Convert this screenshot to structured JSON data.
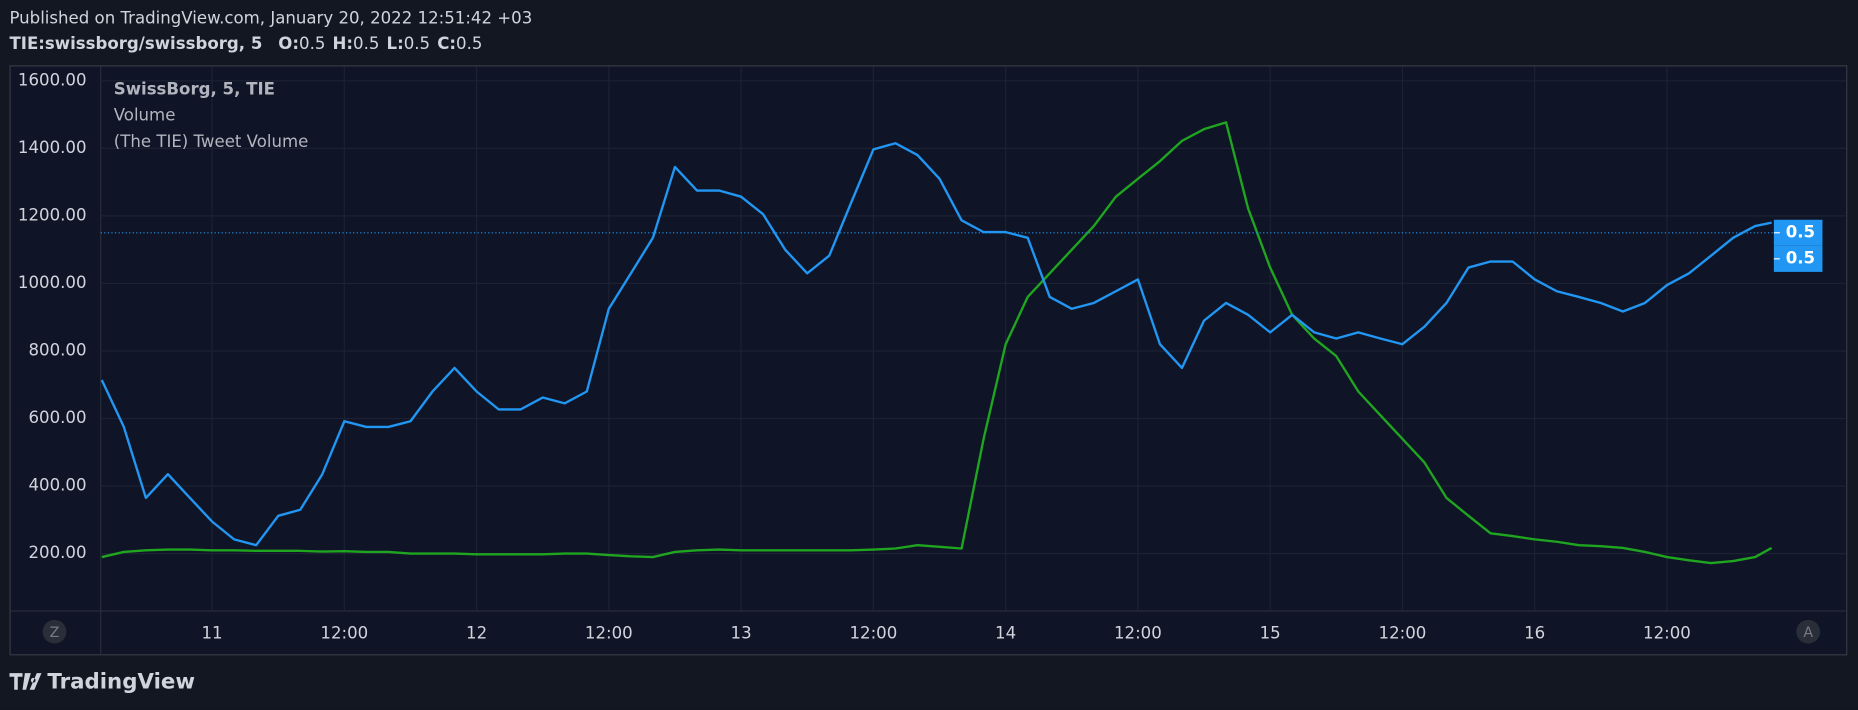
{
  "header": {
    "published": "Published on TradingView.com, January 20, 2022 12:51:42 +03",
    "symbol": "TIE:swissborg/swissborg, 5",
    "ohlc": [
      {
        "label": "O:",
        "value": 0.5
      },
      {
        "label": "H:",
        "value": 0.5
      },
      {
        "label": "L:",
        "value": 0.5
      },
      {
        "label": "C:",
        "value": 0.5
      }
    ]
  },
  "chart_data": {
    "type": "line",
    "legend_title": "SwissBorg, 5, TIE",
    "x": [
      -10,
      -8,
      -6,
      -4,
      -2,
      0,
      2,
      4,
      6,
      8,
      10,
      12,
      14,
      16,
      18,
      20,
      22,
      24,
      26,
      28,
      30,
      32,
      34,
      36,
      38,
      40,
      42,
      44,
      46,
      48,
      50,
      52,
      54,
      56,
      58,
      60,
      62,
      64,
      66,
      68,
      70,
      72,
      74,
      76,
      78,
      80,
      82,
      84,
      86,
      88,
      90,
      92,
      94,
      96,
      98,
      100,
      102,
      104,
      106,
      108,
      110,
      112,
      114,
      116,
      118,
      120,
      122,
      124,
      126,
      128,
      130,
      132,
      134,
      136,
      138,
      140,
      141.5
    ],
    "series": [
      {
        "name": "Volume",
        "color": "#2196f3",
        "values": [
          714,
          575,
          365,
          435,
          365,
          295,
          242,
          225,
          312,
          330,
          435,
          592,
          575,
          575,
          592,
          680,
          750,
          680,
          627,
          627,
          662,
          645,
          680,
          925,
          1030,
          1135,
          1345,
          1275,
          1275,
          1257,
          1205,
          1100,
          1030,
          1082,
          1240,
          1397,
          1415,
          1380,
          1310,
          1187,
          1152,
          1152,
          1135,
          960,
          925,
          942,
          977,
          1012,
          820,
          750,
          890,
          942,
          907,
          855,
          907,
          855,
          837,
          855,
          837,
          820,
          872,
          942,
          1047,
          1065,
          1065,
          1012,
          977,
          960,
          942,
          917,
          942,
          995,
          1030,
          1082,
          1135,
          1170,
          1180
        ]
      },
      {
        "name": "(The TIE) Tweet Volume",
        "color": "#1fa51f",
        "values": [
          190,
          205,
          210,
          212,
          212,
          210,
          210,
          208,
          208,
          208,
          206,
          207,
          205,
          205,
          200,
          200,
          200,
          198,
          198,
          198,
          198,
          200,
          200,
          196,
          192,
          190,
          205,
          210,
          212,
          210,
          210,
          210,
          210,
          210,
          210,
          212,
          215,
          225,
          220,
          215,
          540,
          820,
          960,
          1030,
          1100,
          1170,
          1257,
          1310,
          1362,
          1422,
          1457,
          1477,
          1222,
          1047,
          907,
          837,
          785,
          680,
          610,
          540,
          470,
          365,
          312,
          260,
          252,
          242,
          235,
          225,
          222,
          217,
          205,
          190,
          180,
          172,
          178,
          190,
          217
        ]
      }
    ],
    "xlim": [
      -10.1,
      141.7
    ],
    "xticks": [
      {
        "value": 0,
        "label": "11"
      },
      {
        "value": 12,
        "label": "12:00"
      },
      {
        "value": 24,
        "label": "12"
      },
      {
        "value": 36,
        "label": "12:00"
      },
      {
        "value": 48,
        "label": "13"
      },
      {
        "value": 60,
        "label": "12:00"
      },
      {
        "value": 72,
        "label": "14"
      },
      {
        "value": 84,
        "label": "12:00"
      },
      {
        "value": 96,
        "label": "15"
      },
      {
        "value": 108,
        "label": "12:00"
      },
      {
        "value": 120,
        "label": "16"
      },
      {
        "value": 132,
        "label": "12:00"
      }
    ],
    "ylim": [
      32,
      1646
    ],
    "yticks": [
      {
        "value": 200,
        "label": "200.00"
      },
      {
        "value": 400,
        "label": "400.00"
      },
      {
        "value": 600,
        "label": "600.00"
      },
      {
        "value": 800,
        "label": "800.00"
      },
      {
        "value": 1000,
        "label": "1000.00"
      },
      {
        "value": 1200,
        "label": "1200.00"
      },
      {
        "value": 1400,
        "label": "1400.00"
      },
      {
        "value": 1600,
        "label": "1600.00"
      }
    ],
    "price_line": 1150,
    "last_values": [
      0.5,
      0.5
    ],
    "buttons": [
      "Z",
      "A"
    ],
    "grid": true
  },
  "footer": {
    "brand": "TradingView"
  }
}
